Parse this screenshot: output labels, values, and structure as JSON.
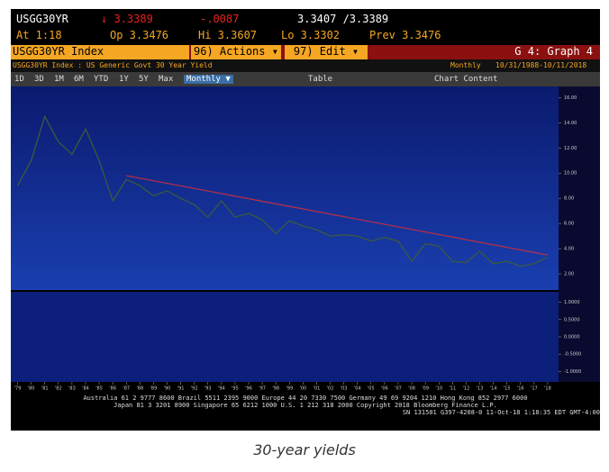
{
  "header": {
    "row1": [
      "USGG30YR",
      "↓ 3.3389",
      "-.0087",
      "3.3407 /3.3389"
    ],
    "row2": [
      "At 1:18",
      "Op 3.3476",
      "Hi 3.3607",
      "Lo 3.3302",
      "Prev 3.3476"
    ]
  },
  "menu": {
    "security": "USGG30YR Index",
    "actions": "96) Actions ▾",
    "edit": "97) Edit ▾",
    "graph": "G 4: Graph 4"
  },
  "subheader": {
    "description": "USGG30YR Index : US Generic Govt 30 Year Yield",
    "frequency": "Monthly",
    "range": "10/31/1988-10/11/2018"
  },
  "toolbar": [
    "1D",
    "3D",
    "1M",
    "6M",
    "YTD",
    "1Y",
    "5Y",
    "Max",
    "Monthly ▼",
    "Table",
    "Chart Content"
  ],
  "chart_data": [
    {
      "type": "line",
      "x": [
        1979,
        1980,
        1981,
        1982,
        1983,
        1984,
        1985,
        1986,
        1987,
        1988,
        1989,
        1990,
        1991,
        1992,
        1993,
        1994,
        1995,
        1996,
        1997,
        1998,
        1999,
        2000,
        2001,
        2002,
        2003,
        2004,
        2005,
        2006,
        2007,
        2008,
        2009,
        2010,
        2011,
        2012,
        2013,
        2014,
        2015,
        2016,
        2017,
        2018
      ],
      "series": [
        {
          "color": "#3c5a3c",
          "values": [
            9.0,
            11.0,
            14.5,
            12.5,
            11.5,
            13.5,
            11.0,
            7.8,
            9.5,
            9.0,
            8.2,
            8.6,
            8.0,
            7.5,
            6.5,
            7.8,
            6.5,
            6.8,
            6.3,
            5.2,
            6.2,
            5.8,
            5.5,
            5.0,
            5.1,
            5.0,
            4.6,
            4.9,
            4.6,
            3.0,
            4.4,
            4.2,
            3.0,
            2.9,
            3.8,
            2.8,
            3.0,
            2.6,
            2.8,
            3.34
          ]
        },
        {
          "color": "#b0304a",
          "x": [
            1987,
            2018
          ],
          "values": [
            9.8,
            3.5
          ]
        }
      ],
      "xlim": [
        1978.5,
        2018.8
      ],
      "ylim": [
        1,
        16.6
      ],
      "yticks": [
        {
          "value": 2,
          "label": "2.00"
        },
        {
          "value": 4,
          "label": "4.00"
        },
        {
          "value": 6,
          "label": "6.00"
        },
        {
          "value": 8,
          "label": "8.00"
        },
        {
          "value": 10,
          "label": "10.00"
        },
        {
          "value": 12,
          "label": "12.00"
        },
        {
          "value": 14,
          "label": "14.00"
        },
        {
          "value": 16,
          "label": "16.00"
        }
      ],
      "xticks": [
        {
          "value": 1979,
          "label": "'79"
        },
        {
          "value": 1980,
          "label": "'80"
        },
        {
          "value": 1981,
          "label": "'81"
        },
        {
          "value": 1982,
          "label": "'82"
        },
        {
          "value": 1983,
          "label": "'83"
        },
        {
          "value": 1984,
          "label": "'84"
        },
        {
          "value": 1985,
          "label": "'85"
        },
        {
          "value": 1986,
          "label": "'86"
        },
        {
          "value": 1987,
          "label": "'87"
        },
        {
          "value": 1988,
          "label": "'88"
        },
        {
          "value": 1989,
          "label": "'89"
        },
        {
          "value": 1990,
          "label": "'90"
        },
        {
          "value": 1991,
          "label": "'91"
        },
        {
          "value": 1992,
          "label": "'92"
        },
        {
          "value": 1993,
          "label": "'93"
        },
        {
          "value": 1994,
          "label": "'94"
        },
        {
          "value": 1995,
          "label": "'95"
        },
        {
          "value": 1996,
          "label": "'96"
        },
        {
          "value": 1997,
          "label": "'97"
        },
        {
          "value": 1998,
          "label": "'98"
        },
        {
          "value": 1999,
          "label": "'99"
        },
        {
          "value": 2000,
          "label": "'00"
        },
        {
          "value": 2001,
          "label": "'01"
        },
        {
          "value": 2002,
          "label": "'02"
        },
        {
          "value": 2003,
          "label": "'03"
        },
        {
          "value": 2004,
          "label": "'04"
        },
        {
          "value": 2005,
          "label": "'05"
        },
        {
          "value": 2006,
          "label": "'06"
        },
        {
          "value": 2007,
          "label": "'07"
        },
        {
          "value": 2008,
          "label": "'08"
        },
        {
          "value": 2009,
          "label": "'09"
        },
        {
          "value": 2010,
          "label": "'10"
        },
        {
          "value": 2011,
          "label": "'11"
        },
        {
          "value": 2012,
          "label": "'12"
        },
        {
          "value": 2013,
          "label": "'13"
        },
        {
          "value": 2014,
          "label": "'14"
        },
        {
          "value": 2015,
          "label": "'15"
        },
        {
          "value": 2016,
          "label": "'16"
        },
        {
          "value": 2017,
          "label": "'17"
        },
        {
          "value": 2018,
          "label": "'18"
        }
      ]
    },
    {
      "type": "line",
      "series": [],
      "ylim": [
        -1.2,
        1.2
      ],
      "yticks": [
        {
          "value": -1,
          "label": "-1.0000"
        },
        {
          "value": -0.5,
          "label": "-0.5000"
        },
        {
          "value": 0,
          "label": "0.0000"
        },
        {
          "value": 0.5,
          "label": "0.5000"
        },
        {
          "value": 1,
          "label": "1.0000"
        }
      ]
    }
  ],
  "footer": [
    "Australia 61 2 9777 8600 Brazil 5511 2395 9000 Europe 44 20 7330 7500 Germany 49 69 9204 1210 Hong Kong 852 2977 6000",
    "Japan 81 3 3201 8900   Singapore 65 6212 1000   U.S. 1 212 318 2000   Copyright 2018 Bloomberg Finance L.P.",
    "SN 131501 G397-4208-0 11-Oct-18  1:18:35 EDT  GMT-4:00"
  ],
  "caption": "30-year yields"
}
